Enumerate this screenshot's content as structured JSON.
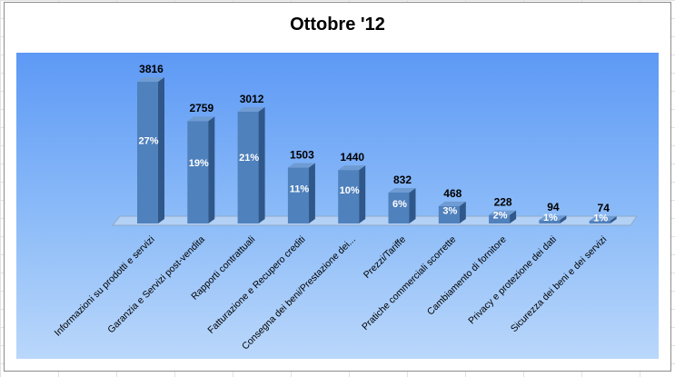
{
  "chart_data": {
    "type": "bar",
    "title": "Ottobre '12",
    "categories": [
      "Informazioni su prodotti e servizi",
      "Garanzia e Servizi post-vendita",
      "Rapporti contrattuali",
      "Fatturazione e Recupero crediti",
      "Consegna dei beni/Prestazione dei...",
      "Prezzi/Tariffe",
      "Pratiche commerciali scorrette",
      "Cambiamento di fornitore",
      "Privacy e protezione dei dati",
      "Sicurezza dei beni e dei servizi"
    ],
    "values": [
      3816,
      2759,
      3012,
      1503,
      1440,
      832,
      468,
      228,
      94,
      74
    ],
    "percent_labels": [
      "27%",
      "19%",
      "21%",
      "11%",
      "10%",
      "6%",
      "3%",
      "2%",
      "1%",
      "1%"
    ],
    "xlabel": "",
    "ylabel": "",
    "ylim": [
      0,
      4000
    ],
    "grid": false,
    "legend": "none",
    "style": "3d-column",
    "colors": {
      "bar_front": "#4f81bd",
      "bar_side": "#2f5789",
      "bar_top": "#6f9bd3",
      "floor": "#b3d0f5",
      "plot_bg_top": "#5d99f5",
      "plot_bg_bottom": "#bad7fb"
    }
  }
}
